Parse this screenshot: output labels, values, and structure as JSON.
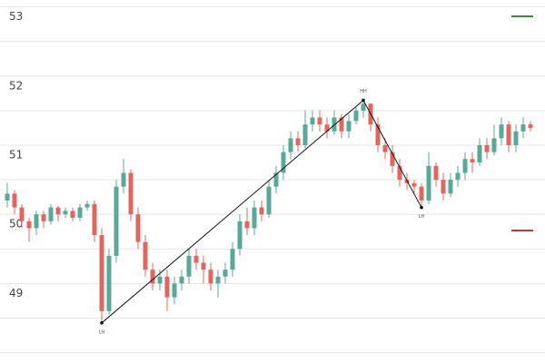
{
  "chart_data": {
    "type": "candlestick",
    "ylim": [
      47.85,
      53.1
    ],
    "yticks": [
      49,
      50,
      51,
      52,
      53
    ],
    "ygrid": [
      48,
      48.5,
      49,
      49.5,
      50,
      50.5,
      51,
      51.5,
      52,
      52.5,
      53
    ],
    "up_color": "#5aa897",
    "down_color": "#e0675f",
    "open": [
      50.2,
      50.3,
      50.1,
      49.9,
      49.8,
      50.0,
      49.9,
      50.1,
      50.0,
      50.05,
      49.95,
      50.1,
      50.15,
      49.7,
      48.6,
      49.4,
      50.4,
      50.6,
      50.0,
      49.6,
      49.2,
      49.0,
      49.1,
      48.8,
      49.0,
      49.1,
      49.4,
      49.3,
      49.2,
      49.0,
      49.1,
      49.2,
      49.5,
      49.9,
      49.8,
      50.1,
      50.0,
      50.4,
      50.6,
      50.9,
      51.1,
      51.0,
      51.3,
      51.4,
      51.3,
      51.2,
      51.4,
      51.2,
      51.35,
      51.5,
      51.6,
      51.3,
      51.0,
      50.9,
      50.7,
      50.5,
      50.45,
      50.4,
      50.2,
      50.7,
      50.5,
      50.3,
      50.5,
      50.6,
      50.8,
      50.75,
      51.0,
      50.9,
      51.1,
      51.3,
      51.0,
      51.2,
      51.3
    ],
    "high": [
      50.45,
      50.35,
      50.15,
      49.95,
      50.05,
      50.05,
      50.15,
      50.12,
      50.1,
      50.1,
      50.15,
      50.2,
      50.2,
      49.8,
      49.5,
      50.5,
      50.8,
      50.65,
      50.1,
      49.7,
      49.3,
      49.2,
      49.2,
      49.1,
      49.2,
      49.5,
      49.5,
      49.4,
      49.3,
      49.2,
      49.3,
      49.6,
      50.0,
      50.1,
      50.2,
      50.2,
      50.5,
      50.7,
      51.0,
      51.2,
      51.2,
      51.5,
      51.5,
      51.5,
      51.4,
      51.5,
      51.45,
      51.45,
      51.55,
      51.65,
      51.6,
      51.4,
      51.1,
      51.0,
      50.8,
      50.6,
      50.5,
      50.45,
      50.9,
      50.75,
      50.6,
      50.6,
      50.7,
      50.9,
      50.9,
      51.1,
      51.1,
      51.3,
      51.4,
      51.35,
      51.3,
      51.4,
      51.35
    ],
    "low": [
      50.1,
      50.0,
      49.8,
      49.6,
      49.7,
      49.8,
      49.85,
      49.9,
      49.95,
      49.9,
      49.9,
      50.05,
      49.6,
      48.43,
      48.55,
      49.3,
      50.3,
      49.9,
      49.5,
      49.1,
      48.9,
      48.9,
      48.6,
      48.7,
      48.9,
      49.0,
      49.2,
      49.0,
      48.9,
      48.8,
      49.0,
      49.1,
      49.4,
      49.7,
      49.7,
      49.9,
      49.95,
      50.3,
      50.5,
      50.8,
      50.9,
      50.95,
      51.2,
      51.2,
      51.1,
      51.15,
      51.1,
      51.1,
      51.3,
      51.4,
      51.2,
      50.9,
      50.8,
      50.6,
      50.4,
      50.35,
      50.3,
      50.1,
      50.15,
      50.4,
      50.2,
      50.25,
      50.4,
      50.5,
      50.6,
      50.7,
      50.8,
      50.85,
      51.0,
      50.9,
      50.9,
      51.1,
      51.2
    ],
    "close": [
      50.3,
      50.1,
      49.9,
      49.8,
      50.0,
      49.9,
      50.1,
      50.0,
      50.05,
      49.95,
      50.1,
      50.15,
      49.7,
      48.6,
      49.4,
      50.4,
      50.6,
      50.0,
      49.6,
      49.2,
      49.0,
      49.1,
      48.8,
      49.0,
      49.1,
      49.4,
      49.3,
      49.2,
      49.0,
      49.1,
      49.2,
      49.5,
      49.9,
      49.8,
      50.1,
      50.0,
      50.4,
      50.6,
      50.9,
      51.1,
      51.0,
      51.3,
      51.4,
      51.3,
      51.2,
      51.4,
      51.2,
      51.35,
      51.5,
      51.6,
      51.3,
      51.0,
      50.9,
      50.7,
      50.5,
      50.45,
      50.4,
      50.2,
      50.7,
      50.5,
      50.3,
      50.5,
      50.6,
      50.8,
      50.75,
      51.0,
      50.9,
      51.1,
      51.3,
      51.0,
      51.2,
      51.3,
      51.25
    ],
    "zigzag": {
      "indices": [
        13,
        49,
        57
      ],
      "values": [
        48.43,
        51.65,
        50.1
      ],
      "labels": [
        "LH",
        "HH",
        "LH"
      ]
    }
  }
}
